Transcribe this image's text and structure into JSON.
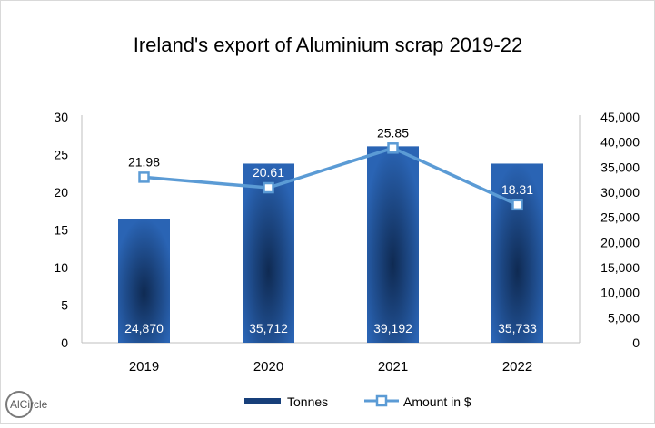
{
  "chart_data": {
    "type": "bar+line",
    "title": "Ireland's export of Aluminium scrap 2019-22",
    "categories": [
      "2019",
      "2020",
      "2021",
      "2022"
    ],
    "series": [
      {
        "name": "Tonnes",
        "type": "bar",
        "axis": "left",
        "values": [
          16.5,
          23.8,
          26.1,
          23.8
        ],
        "labels": [
          "24,870",
          "35,712",
          "39,192",
          "35,733"
        ]
      },
      {
        "name": "Amount in $",
        "type": "line",
        "axis": "right",
        "values": [
          33000,
          30900,
          38800,
          27500
        ],
        "labels": [
          "21.98",
          "20.61",
          "25.85",
          "18.31"
        ]
      }
    ],
    "left_axis": {
      "min": 0,
      "max": 30,
      "step": 5,
      "ticks": [
        "0",
        "5",
        "10",
        "15",
        "20",
        "25",
        "30"
      ]
    },
    "right_axis": {
      "min": 0,
      "max": 45000,
      "step": 5000,
      "ticks": [
        "0",
        "5,000",
        "10,000",
        "15,000",
        "20,000",
        "25,000",
        "30,000",
        "35,000",
        "40,000",
        "45,000"
      ]
    },
    "legend": {
      "position": "bottom",
      "items": [
        "Tonnes",
        "Amount in $"
      ]
    }
  },
  "colors": {
    "bar_dark": "#173f7a",
    "bar_light": "#2a64b4",
    "line": "#5b9bd5",
    "axis": "#bfbfbf"
  },
  "logo": {
    "text": "AlCircle"
  }
}
